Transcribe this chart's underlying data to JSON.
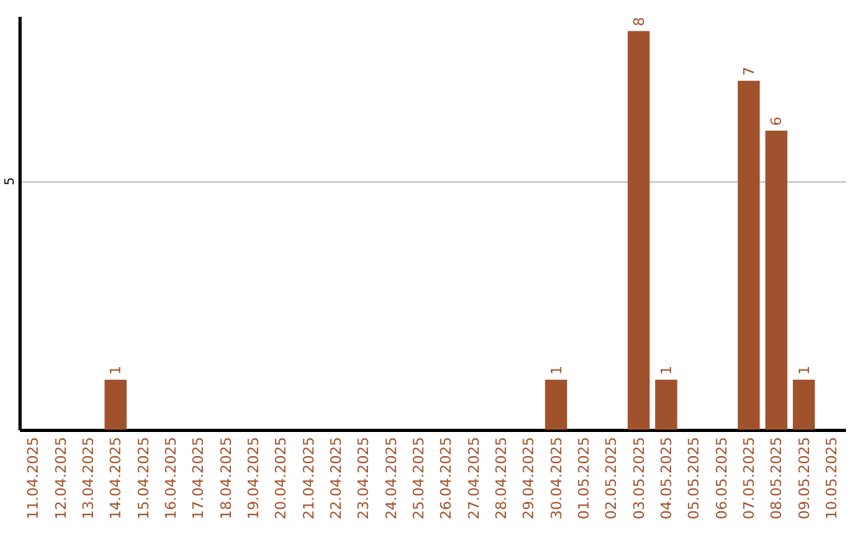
{
  "chart_data": {
    "type": "bar",
    "categories": [
      "11.04.2025",
      "12.04.2025",
      "13.04.2025",
      "14.04.2025",
      "15.04.2025",
      "16.04.2025",
      "17.04.2025",
      "18.04.2025",
      "19.04.2025",
      "20.04.2025",
      "21.04.2025",
      "22.04.2025",
      "23.04.2025",
      "24.04.2025",
      "25.04.2025",
      "26.04.2025",
      "27.04.2025",
      "28.04.2025",
      "29.04.2025",
      "30.04.2025",
      "01.05.2025",
      "02.05.2025",
      "03.05.2025",
      "04.05.2025",
      "05.05.2025",
      "06.05.2025",
      "07.05.2025",
      "08.05.2025",
      "09.05.2025",
      "10.05.2025"
    ],
    "values": [
      0,
      0,
      0,
      1,
      0,
      0,
      0,
      0,
      0,
      0,
      0,
      0,
      0,
      0,
      0,
      0,
      0,
      0,
      0,
      1,
      0,
      0,
      8,
      1,
      0,
      0,
      7,
      6,
      1,
      0
    ],
    "value_labels": [
      null,
      null,
      null,
      "1",
      null,
      null,
      null,
      null,
      null,
      null,
      null,
      null,
      null,
      null,
      null,
      null,
      null,
      null,
      null,
      "1",
      null,
      null,
      "8",
      "1",
      null,
      null,
      "7",
      "6",
      "1",
      null
    ],
    "color": "#a0522d",
    "ylim": [
      0,
      8.3
    ],
    "yticks": [
      5
    ],
    "grid": "y"
  }
}
